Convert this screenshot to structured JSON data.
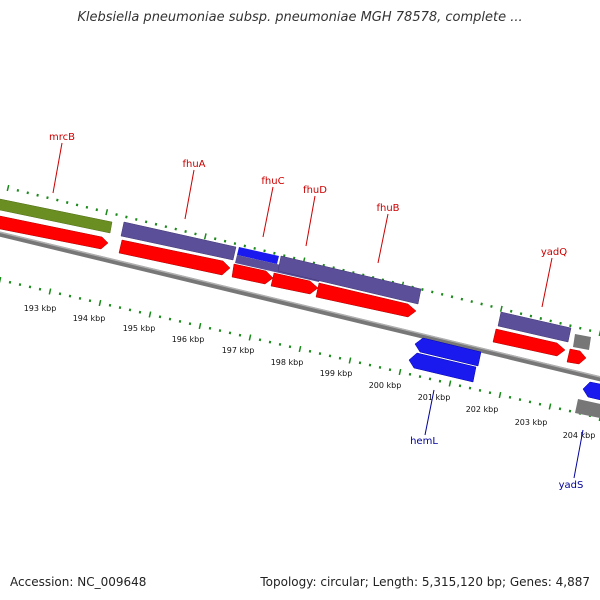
{
  "header": {
    "title": "Klebsiella pneumoniae subsp. pneumoniae MGH 78578, complete ..."
  },
  "footer": {
    "accession": "Accession: NC_009648",
    "topology": "Topology: circular; Length: 5,315,120 bp; Genes: 4,887"
  },
  "colors": {
    "backbone": "#888888",
    "tick": "#1a8a1a",
    "cds": "#ff0000",
    "gene_forward": "#5b4f9a",
    "gene_reverse": "#1a1aee",
    "pseudo": "#6b8e23",
    "other": "#777777",
    "label_forward": "#cc0000",
    "label_reverse": "#00009a"
  },
  "map": {
    "axis_labels": [
      "193 kbp",
      "194 kbp",
      "195 kbp",
      "196 kbp",
      "197 kbp",
      "198 kbp",
      "199 kbp",
      "200 kbp",
      "201 kbp",
      "202 kbp",
      "203 kbp",
      "204 kbp"
    ],
    "forward_labels": [
      "mrcB",
      "fhuA",
      "fhuC",
      "fhuD",
      "fhuB",
      "yadQ"
    ],
    "reverse_labels": [
      "hemL",
      "yadS"
    ]
  }
}
